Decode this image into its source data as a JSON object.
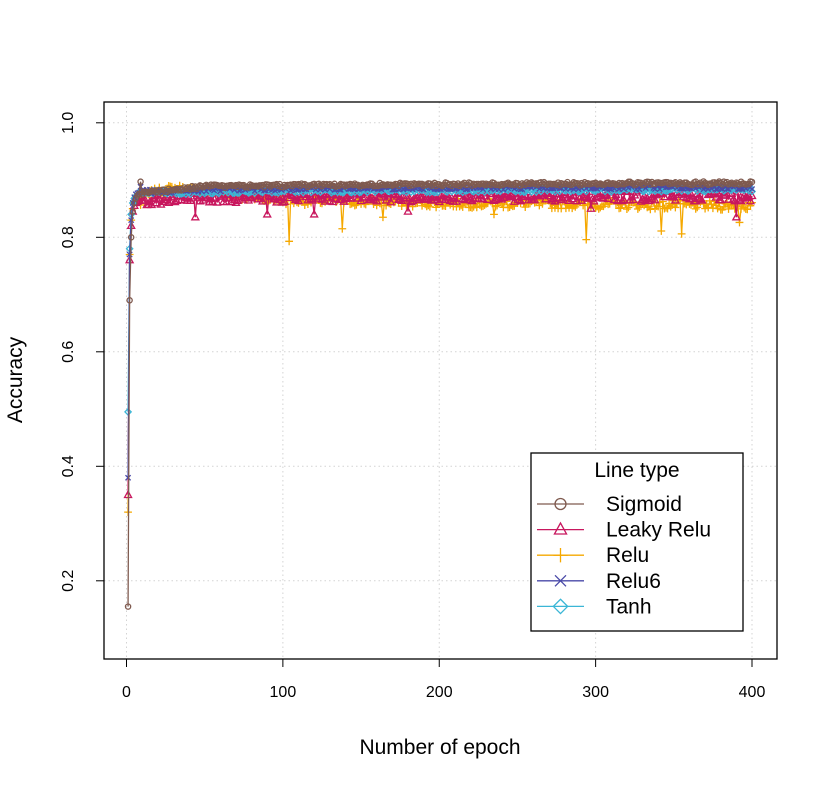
{
  "chart_data": {
    "type": "line",
    "xlabel": "Number of epoch",
    "ylabel": "Accuracy",
    "xlim": [
      0,
      400
    ],
    "ylim": [
      0.15,
      1.0
    ],
    "x_ticks": [
      0,
      100,
      200,
      300,
      400
    ],
    "x_tick_labels": [
      "0",
      "100",
      "200",
      "300",
      "400"
    ],
    "y_ticks": [
      0.2,
      0.4,
      0.6,
      0.8,
      1.0
    ],
    "y_tick_labels": [
      "0.2",
      "0.4",
      "0.6",
      "0.8",
      "1.0"
    ],
    "grid": true,
    "legend": {
      "title": "Line type",
      "position": "bottom-right"
    },
    "series": [
      {
        "name": "Sigmoid",
        "color": "#7f5a4f",
        "marker": "circle",
        "start": [
          0.155,
          0.69,
          0.8,
          0.845,
          0.86,
          0.868,
          0.873,
          0.876
        ],
        "plateau": [
          [
            10,
            0.877
          ],
          [
            50,
            0.889
          ],
          [
            150,
            0.892
          ],
          [
            400,
            0.895
          ]
        ],
        "noise": 0.003,
        "dips": []
      },
      {
        "name": "Leaky Relu",
        "color": "#c8175e",
        "marker": "triangle",
        "start": [
          0.35,
          0.76,
          0.82,
          0.845,
          0.855,
          0.86,
          0.862,
          0.864
        ],
        "plateau": [
          [
            10,
            0.864
          ],
          [
            50,
            0.87
          ],
          [
            150,
            0.871
          ],
          [
            400,
            0.873
          ]
        ],
        "noise": 0.01,
        "dips": [
          [
            44,
            0.835
          ],
          [
            90,
            0.84
          ],
          [
            120,
            0.84
          ],
          [
            180,
            0.845
          ],
          [
            297,
            0.85
          ],
          [
            390,
            0.835
          ]
        ]
      },
      {
        "name": "Relu",
        "color": "#f5a800",
        "marker": "plus",
        "start": [
          0.32,
          0.77,
          0.83,
          0.85,
          0.86,
          0.865,
          0.868,
          0.87
        ],
        "plateau": [
          [
            10,
            0.872
          ],
          [
            30,
            0.885
          ],
          [
            100,
            0.865
          ],
          [
            200,
            0.86
          ],
          [
            400,
            0.855
          ]
        ],
        "noise": 0.008,
        "dips": [
          [
            104,
            0.793
          ],
          [
            138,
            0.815
          ],
          [
            164,
            0.835
          ],
          [
            235,
            0.84
          ],
          [
            294,
            0.796
          ],
          [
            342,
            0.811
          ],
          [
            355,
            0.806
          ],
          [
            392,
            0.826
          ]
        ]
      },
      {
        "name": "Relu6",
        "color": "#4a4aa8",
        "marker": "cross",
        "start": [
          0.38,
          0.77,
          0.83,
          0.86,
          0.87,
          0.875,
          0.877,
          0.878
        ],
        "plateau": [
          [
            10,
            0.879
          ],
          [
            50,
            0.884
          ],
          [
            150,
            0.887
          ],
          [
            400,
            0.888
          ]
        ],
        "noise": 0.004,
        "dips": []
      },
      {
        "name": "Tanh",
        "color": "#3bb6d6",
        "marker": "diamond",
        "start": [
          0.495,
          0.78,
          0.84,
          0.86,
          0.868,
          0.872,
          0.874,
          0.876
        ],
        "plateau": [
          [
            10,
            0.877
          ],
          [
            50,
            0.88
          ],
          [
            150,
            0.882
          ],
          [
            400,
            0.884
          ]
        ],
        "noise": 0.004,
        "dips": []
      }
    ]
  }
}
